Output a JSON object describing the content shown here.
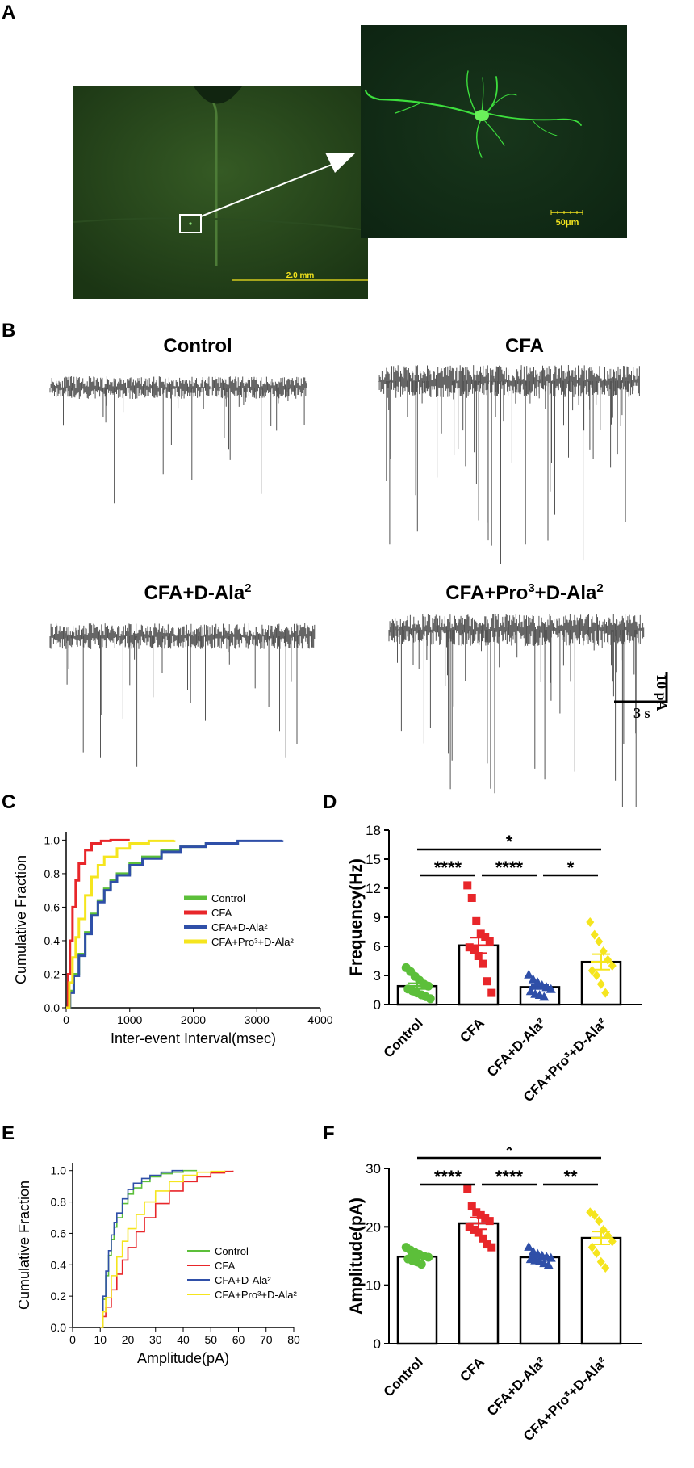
{
  "panels": {
    "A": {
      "label": "A",
      "overview_scale": "2.0 mm",
      "zoom_scale": "50μm"
    },
    "B": {
      "label": "B",
      "traces": [
        {
          "key": "control",
          "title_pre": "Control",
          "sup1": "",
          "mid": "",
          "sup2": ""
        },
        {
          "key": "cfa",
          "title_pre": "CFA",
          "sup1": "",
          "mid": "",
          "sup2": ""
        },
        {
          "key": "dala",
          "title_pre": "CFA+D-Ala",
          "sup1": "2",
          "mid": "",
          "sup2": ""
        },
        {
          "key": "pro",
          "title_pre": "CFA+Pro",
          "sup1": "3",
          "mid": "+D-Ala",
          "sup2": "2"
        }
      ],
      "scale_y": "10 pA",
      "scale_x": "3 s"
    },
    "C": {
      "label": "C"
    },
    "D": {
      "label": "D"
    },
    "E": {
      "label": "E"
    },
    "F": {
      "label": "F"
    }
  },
  "colors": {
    "control": "#5cbf3a",
    "cfa": "#e8262a",
    "dala": "#2f4fa8",
    "pro": "#f5e51e",
    "trace": "#555555"
  },
  "chart_data": [
    {
      "id": "C",
      "type": "line",
      "xlabel": "Inter-event Interval(msec)",
      "ylabel": "Cumulative Fraction",
      "xlim": [
        0,
        4000
      ],
      "ylim": [
        0,
        1.05
      ],
      "xticks": [
        0,
        1000,
        2000,
        3000,
        4000
      ],
      "yticks": [
        0.0,
        0.2,
        0.4,
        0.6,
        0.8,
        1.0
      ],
      "ytick_labels": [
        "0.0",
        "0.2",
        "0.4",
        "0.6",
        "0.8",
        "1.0"
      ],
      "legend_position": "right",
      "series": [
        {
          "name": "Control",
          "color_key": "control",
          "x": [
            0,
            60,
            120,
            200,
            300,
            400,
            500,
            600,
            700,
            800,
            1000,
            1200,
            1500,
            1800,
            2200,
            2700
          ],
          "y": [
            0,
            0.1,
            0.2,
            0.32,
            0.45,
            0.56,
            0.64,
            0.71,
            0.76,
            0.8,
            0.86,
            0.9,
            0.94,
            0.96,
            0.98,
            1.0
          ]
        },
        {
          "name": "CFA",
          "color_key": "cfa",
          "x": [
            0,
            30,
            60,
            100,
            150,
            200,
            300,
            400,
            550,
            700,
            1000
          ],
          "y": [
            0,
            0.2,
            0.4,
            0.6,
            0.76,
            0.86,
            0.94,
            0.98,
            0.995,
            1.0,
            1.0
          ]
        },
        {
          "name": "CFA+D-Ala²",
          "color_key": "dala",
          "x": [
            0,
            60,
            120,
            200,
            300,
            400,
            500,
            600,
            700,
            800,
            1000,
            1200,
            1500,
            1800,
            2200,
            2700,
            3400
          ],
          "y": [
            0,
            0.09,
            0.19,
            0.31,
            0.44,
            0.55,
            0.63,
            0.7,
            0.75,
            0.79,
            0.85,
            0.89,
            0.93,
            0.96,
            0.98,
            0.995,
            1.0
          ]
        },
        {
          "name": "CFA+Pro³+D-Ala²",
          "color_key": "pro",
          "x": [
            0,
            50,
            100,
            150,
            200,
            300,
            400,
            500,
            600,
            800,
            1000,
            1300,
            1700
          ],
          "y": [
            0,
            0.15,
            0.3,
            0.42,
            0.53,
            0.67,
            0.78,
            0.85,
            0.9,
            0.95,
            0.98,
            0.995,
            1.0
          ]
        }
      ]
    },
    {
      "id": "D",
      "type": "bar",
      "ylabel": "Frequency(Hz)",
      "ylim": [
        0,
        18
      ],
      "yticks": [
        0,
        3,
        6,
        9,
        12,
        15,
        18
      ],
      "categories": [
        "Control",
        "CFA",
        "CFA+D-Ala²",
        "CFA+Pro³+D-Ala²"
      ],
      "means": [
        1.9,
        6.1,
        1.8,
        4.4
      ],
      "sem": [
        0.3,
        0.8,
        0.2,
        0.8
      ],
      "points": [
        [
          3.8,
          3.4,
          2.9,
          2.5,
          2.1,
          1.9,
          1.6,
          1.4,
          1.2,
          1.0,
          0.8,
          0.6
        ],
        [
          12.3,
          11.0,
          8.6,
          7.3,
          7.0,
          6.5,
          5.9,
          5.7,
          5.0,
          4.2,
          2.4,
          1.2
        ],
        [
          3.1,
          2.6,
          2.3,
          2.0,
          1.8,
          1.6,
          1.4,
          1.1,
          1.0,
          0.8
        ],
        [
          8.5,
          7.2,
          6.5,
          5.5,
          4.6,
          4.0,
          3.5,
          3.0,
          2.1,
          1.2
        ]
      ],
      "significance": [
        {
          "from": 0,
          "to": 3,
          "label": "*"
        },
        {
          "from": 0,
          "to": 1,
          "label": "****"
        },
        {
          "from": 1,
          "to": 2,
          "label": "****"
        },
        {
          "from": 2,
          "to": 3,
          "label": "*"
        }
      ]
    },
    {
      "id": "E",
      "type": "line",
      "xlabel": "Amplitude(pA)",
      "ylabel": "Cumulative Fraction",
      "xlim": [
        0,
        80
      ],
      "ylim": [
        0,
        1.05
      ],
      "xticks": [
        0,
        10,
        20,
        30,
        40,
        50,
        60,
        70,
        80
      ],
      "yticks": [
        0.0,
        0.2,
        0.4,
        0.6,
        0.8,
        1.0
      ],
      "ytick_labels": [
        "0.0",
        "0.2",
        "0.4",
        "0.6",
        "0.8",
        "1.0"
      ],
      "legend_position": "right",
      "series": [
        {
          "name": "Control",
          "color_key": "control",
          "x": [
            10,
            11,
            12,
            13,
            14,
            15,
            16,
            18,
            20,
            22,
            25,
            28,
            32,
            36,
            40,
            45
          ],
          "y": [
            0,
            0.18,
            0.33,
            0.46,
            0.56,
            0.64,
            0.7,
            0.79,
            0.85,
            0.89,
            0.93,
            0.96,
            0.98,
            0.99,
            1.0,
            1.0
          ]
        },
        {
          "name": "CFA",
          "color_key": "cfa",
          "x": [
            10,
            11,
            12,
            14,
            16,
            18,
            20,
            23,
            26,
            30,
            35,
            40,
            45,
            50,
            55,
            58
          ],
          "y": [
            0,
            0.07,
            0.13,
            0.24,
            0.34,
            0.43,
            0.51,
            0.61,
            0.7,
            0.79,
            0.87,
            0.93,
            0.96,
            0.985,
            0.995,
            1.0
          ]
        },
        {
          "name": "CFA+D-Ala²",
          "color_key": "dala",
          "x": [
            10,
            11,
            12,
            13,
            14,
            15,
            16,
            18,
            20,
            22,
            25,
            28,
            32,
            36,
            40
          ],
          "y": [
            0,
            0.2,
            0.36,
            0.49,
            0.59,
            0.67,
            0.73,
            0.82,
            0.88,
            0.92,
            0.95,
            0.97,
            0.99,
            1.0,
            1.0
          ]
        },
        {
          "name": "CFA+Pro³+D-Ala²",
          "color_key": "pro",
          "x": [
            10,
            11,
            12,
            14,
            16,
            18,
            20,
            23,
            26,
            30,
            35,
            40,
            45,
            50,
            55
          ],
          "y": [
            0,
            0.1,
            0.19,
            0.33,
            0.45,
            0.55,
            0.63,
            0.72,
            0.8,
            0.87,
            0.93,
            0.97,
            0.99,
            0.995,
            1.0
          ]
        }
      ]
    },
    {
      "id": "F",
      "type": "bar",
      "ylabel": "Amplitude(pA)",
      "ylim": [
        0,
        30
      ],
      "yticks": [
        0,
        10,
        20,
        30
      ],
      "categories": [
        "Control",
        "CFA",
        "CFA+D-Ala²",
        "CFA+Pro³+D-Ala²"
      ],
      "means": [
        14.9,
        20.6,
        14.8,
        18.1
      ],
      "sem": [
        0.3,
        1.0,
        0.3,
        1.1
      ],
      "points": [
        [
          16.5,
          16.0,
          15.6,
          15.3,
          15.0,
          14.8,
          14.5,
          14.2,
          14.0,
          13.6
        ],
        [
          26.5,
          23.5,
          22.5,
          22.0,
          21.5,
          21.0,
          20.0,
          19.5,
          19.0,
          18.0,
          17.0,
          16.5
        ],
        [
          16.6,
          15.8,
          15.4,
          15.1,
          14.9,
          14.7,
          14.5,
          14.3,
          14.1,
          13.8,
          13.5
        ],
        [
          22.5,
          22.0,
          21.0,
          19.5,
          18.5,
          17.5,
          16.5,
          15.5,
          14.0,
          13.0
        ]
      ],
      "significance": [
        {
          "from": 0,
          "to": 3,
          "label": "*"
        },
        {
          "from": 0,
          "to": 1,
          "label": "****"
        },
        {
          "from": 1,
          "to": 2,
          "label": "****"
        },
        {
          "from": 2,
          "to": 3,
          "label": "**"
        }
      ]
    }
  ]
}
